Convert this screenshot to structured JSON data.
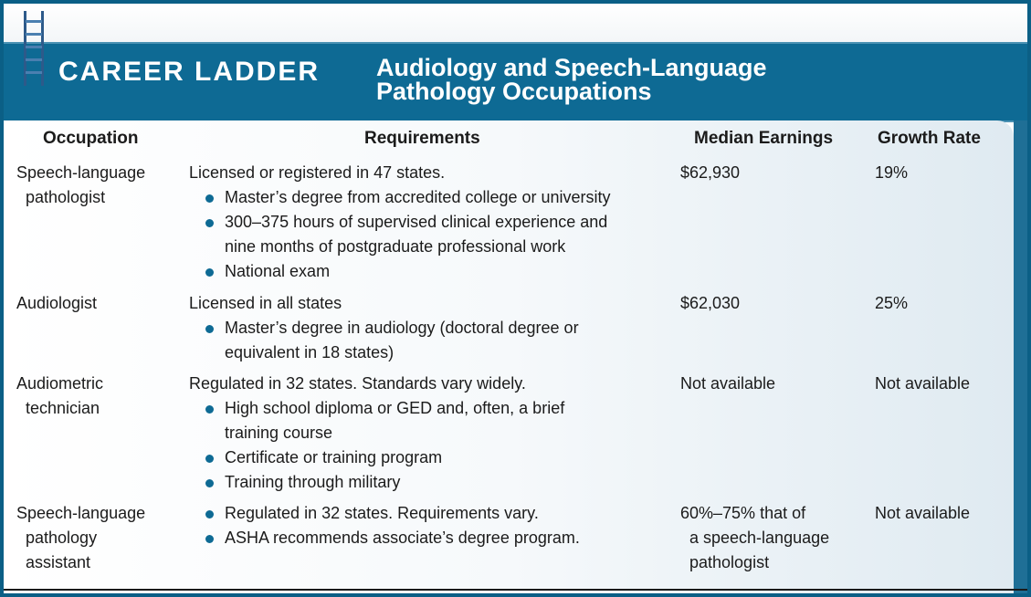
{
  "header": {
    "brand": "CAREER LADDER",
    "title_lines": [
      "Audiology and Speech-Language",
      "Pathology Occupations"
    ]
  },
  "columns": [
    "Occupation",
    "Requirements",
    "Median Earnings",
    "Growth Rate"
  ],
  "colors": {
    "banner": "#0e6a94",
    "border": "#0b5f86",
    "bullet": "#0e6a94"
  },
  "rows": [
    {
      "occupation": [
        "Speech-language",
        "pathologist"
      ],
      "intro": "Licensed or registered in 47 states.",
      "bullets": [
        [
          "Master’s degree from accredited college or university"
        ],
        [
          "300–375 hours of supervised clinical experience and",
          "nine months of postgraduate professional work"
        ],
        [
          "National exam"
        ]
      ],
      "earnings": [
        "$62,930"
      ],
      "growth": "19%"
    },
    {
      "occupation": [
        "Audiologist"
      ],
      "intro": "Licensed in all states",
      "bullets": [
        [
          "Master’s degree in audiology (doctoral degree or",
          "equivalent in 18 states)"
        ]
      ],
      "earnings": [
        "$62,030"
      ],
      "growth": "25%"
    },
    {
      "occupation": [
        "Audiometric",
        "technician"
      ],
      "intro": "Regulated in 32 states. Standards vary widely.",
      "bullets": [
        [
          "High school diploma or GED and, often, a brief",
          "training course"
        ],
        [
          "Certificate or training program"
        ],
        [
          "Training through military"
        ]
      ],
      "earnings": [
        "Not available"
      ],
      "growth": "Not available"
    },
    {
      "occupation": [
        "Speech-language",
        "pathology",
        "assistant"
      ],
      "intro": null,
      "bullets": [
        [
          "Regulated in 32 states. Requirements vary."
        ],
        [
          "ASHA recommends associate’s degree program."
        ]
      ],
      "earnings": [
        "60%–75% that of",
        "a speech-language",
        "pathologist"
      ],
      "growth": "Not available"
    }
  ]
}
